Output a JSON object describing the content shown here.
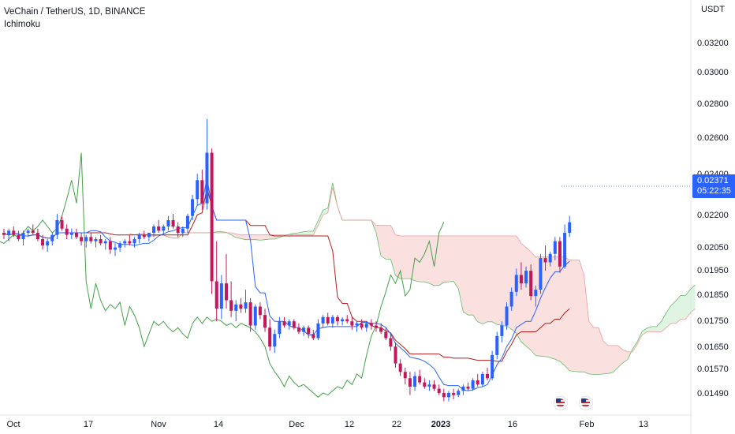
{
  "header": {
    "title": "VeChain / TetherUS, 1D, BINANCE",
    "indicator": "Ichimoku"
  },
  "price_axis": {
    "currency": "USDT",
    "labels": [
      "0.03200",
      "0.03000",
      "0.02800",
      "0.02600",
      "0.02400",
      "0.02200",
      "0.02050",
      "0.01950",
      "0.01850",
      "0.01750",
      "0.01650",
      "0.01570",
      "0.01490"
    ]
  },
  "time_axis": {
    "labels": [
      "Oct",
      "17",
      "Nov",
      "14",
      "Dec",
      "12",
      "22",
      "2023",
      "16",
      "Feb",
      "13"
    ]
  },
  "last_price": {
    "price": "0.02371",
    "countdown": "05:22:35"
  },
  "events": [
    "us-flag-icon",
    "us-flag-icon"
  ],
  "colors": {
    "up": "#2962ff",
    "down": "#c2185b",
    "tenkan": "#2962ff",
    "kijun": "#b71c1c",
    "chikou": "#43a047",
    "cloud_bear": "#f8d7d4",
    "cloud_bull": "#d6f0d9"
  },
  "chart_data": {
    "type": "candlestick",
    "symbol": "VeChain / TetherUS",
    "interval": "1D",
    "candles": [
      [
        0.0232,
        0.0234,
        0.0229,
        0.0231
      ],
      [
        0.0231,
        0.0234,
        0.0228,
        0.0233
      ],
      [
        0.0233,
        0.0235,
        0.023,
        0.0231
      ],
      [
        0.0231,
        0.0233,
        0.0228,
        0.0229
      ],
      [
        0.0229,
        0.0233,
        0.0226,
        0.0232
      ],
      [
        0.0232,
        0.0234,
        0.023,
        0.0233
      ],
      [
        0.0233,
        0.0236,
        0.0231,
        0.0232
      ],
      [
        0.0232,
        0.0234,
        0.0228,
        0.0229
      ],
      [
        0.0229,
        0.0231,
        0.0224,
        0.0226
      ],
      [
        0.0226,
        0.0229,
        0.0223,
        0.0228
      ],
      [
        0.0228,
        0.0232,
        0.0226,
        0.0231
      ],
      [
        0.0231,
        0.0241,
        0.0229,
        0.0238
      ],
      [
        0.0238,
        0.024,
        0.0233,
        0.0234
      ],
      [
        0.0234,
        0.0236,
        0.0229,
        0.0231
      ],
      [
        0.0231,
        0.0234,
        0.0229,
        0.0232
      ],
      [
        0.0232,
        0.0234,
        0.0229,
        0.023
      ],
      [
        0.023,
        0.0232,
        0.0226,
        0.0228
      ],
      [
        0.0228,
        0.0231,
        0.0225,
        0.023
      ],
      [
        0.023,
        0.0232,
        0.0227,
        0.0228
      ],
      [
        0.0228,
        0.023,
        0.0225,
        0.0229
      ],
      [
        0.0229,
        0.0231,
        0.0226,
        0.0227
      ],
      [
        0.0227,
        0.0229,
        0.0224,
        0.0228
      ],
      [
        0.0228,
        0.023,
        0.0222,
        0.0224
      ],
      [
        0.0224,
        0.0227,
        0.0221,
        0.0225
      ],
      [
        0.0225,
        0.0228,
        0.0223,
        0.0227
      ],
      [
        0.0227,
        0.0229,
        0.0225,
        0.0228
      ],
      [
        0.0228,
        0.0231,
        0.0226,
        0.0227
      ],
      [
        0.0227,
        0.023,
        0.0225,
        0.0229
      ],
      [
        0.0229,
        0.0232,
        0.0227,
        0.0231
      ],
      [
        0.0231,
        0.0233,
        0.0229,
        0.023
      ],
      [
        0.023,
        0.0232,
        0.0228,
        0.0232
      ],
      [
        0.0232,
        0.0236,
        0.023,
        0.0235
      ],
      [
        0.0235,
        0.0238,
        0.0232,
        0.0233
      ],
      [
        0.0233,
        0.0236,
        0.0231,
        0.0235
      ],
      [
        0.0235,
        0.024,
        0.0233,
        0.0238
      ],
      [
        0.0238,
        0.0241,
        0.0234,
        0.0235
      ],
      [
        0.0235,
        0.0237,
        0.023,
        0.0232
      ],
      [
        0.0232,
        0.0235,
        0.023,
        0.0234
      ],
      [
        0.0234,
        0.0241,
        0.0232,
        0.024
      ],
      [
        0.024,
        0.025,
        0.0238,
        0.0248
      ],
      [
        0.0248,
        0.026,
        0.0245,
        0.0257
      ],
      [
        0.0257,
        0.0262,
        0.0243,
        0.0246
      ],
      [
        0.0246,
        0.0286,
        0.0243,
        0.027
      ],
      [
        0.027,
        0.0272,
        0.0203,
        0.0209
      ],
      [
        0.0209,
        0.0228,
        0.019,
        0.0196
      ],
      [
        0.0196,
        0.0212,
        0.0191,
        0.0208
      ],
      [
        0.0208,
        0.0222,
        0.0196,
        0.02
      ],
      [
        0.02,
        0.0209,
        0.0192,
        0.0195
      ],
      [
        0.0195,
        0.02,
        0.019,
        0.0198
      ],
      [
        0.0198,
        0.0201,
        0.0194,
        0.0196
      ],
      [
        0.0196,
        0.0205,
        0.0194,
        0.0199
      ],
      [
        0.0199,
        0.0201,
        0.0185,
        0.0188
      ],
      [
        0.0188,
        0.0198,
        0.0186,
        0.0197
      ],
      [
        0.0197,
        0.0199,
        0.0191,
        0.0193
      ],
      [
        0.0193,
        0.0196,
        0.0185,
        0.0187
      ],
      [
        0.0187,
        0.0191,
        0.0176,
        0.0178
      ],
      [
        0.0178,
        0.0186,
        0.0175,
        0.0184
      ],
      [
        0.0184,
        0.0192,
        0.0182,
        0.019
      ],
      [
        0.019,
        0.0192,
        0.0187,
        0.0188
      ],
      [
        0.0188,
        0.0191,
        0.0186,
        0.019
      ],
      [
        0.019,
        0.0191,
        0.0186,
        0.0187
      ],
      [
        0.0187,
        0.0189,
        0.0184,
        0.0185
      ],
      [
        0.0185,
        0.0188,
        0.0183,
        0.0187
      ],
      [
        0.0187,
        0.0188,
        0.0182,
        0.0184
      ],
      [
        0.0184,
        0.0186,
        0.0181,
        0.0182
      ],
      [
        0.0182,
        0.0191,
        0.0181,
        0.0189
      ],
      [
        0.0189,
        0.0193,
        0.0187,
        0.0192
      ],
      [
        0.0192,
        0.0194,
        0.0188,
        0.0189
      ],
      [
        0.0189,
        0.0193,
        0.0187,
        0.0192
      ],
      [
        0.0192,
        0.0193,
        0.0188,
        0.019
      ],
      [
        0.019,
        0.0192,
        0.0188,
        0.0191
      ],
      [
        0.0191,
        0.0193,
        0.0189,
        0.019
      ],
      [
        0.019,
        0.0192,
        0.0186,
        0.0188
      ],
      [
        0.0188,
        0.019,
        0.0185,
        0.0189
      ],
      [
        0.0189,
        0.0191,
        0.0186,
        0.0187
      ],
      [
        0.0187,
        0.019,
        0.0185,
        0.0189
      ],
      [
        0.0189,
        0.0191,
        0.0186,
        0.0188
      ],
      [
        0.0188,
        0.019,
        0.0185,
        0.0187
      ],
      [
        0.0187,
        0.0189,
        0.0184,
        0.0185
      ],
      [
        0.0185,
        0.0187,
        0.0181,
        0.0182
      ],
      [
        0.0182,
        0.0184,
        0.0176,
        0.0178
      ],
      [
        0.0178,
        0.018,
        0.0168,
        0.017
      ],
      [
        0.017,
        0.0172,
        0.0164,
        0.0166
      ],
      [
        0.0166,
        0.0168,
        0.016,
        0.0163
      ],
      [
        0.0163,
        0.0166,
        0.0155,
        0.0159
      ],
      [
        0.0159,
        0.0166,
        0.0157,
        0.0164
      ],
      [
        0.0164,
        0.0167,
        0.016,
        0.0161
      ],
      [
        0.0161,
        0.0163,
        0.0158,
        0.0159
      ],
      [
        0.0159,
        0.0162,
        0.0157,
        0.016
      ],
      [
        0.016,
        0.0162,
        0.0157,
        0.0158
      ],
      [
        0.0158,
        0.016,
        0.0155,
        0.0156
      ],
      [
        0.0156,
        0.0158,
        0.0152,
        0.0154
      ],
      [
        0.0154,
        0.0157,
        0.0152,
        0.0156
      ],
      [
        0.0156,
        0.0158,
        0.0153,
        0.0155
      ],
      [
        0.0155,
        0.0158,
        0.0154,
        0.0157
      ],
      [
        0.0157,
        0.016,
        0.0155,
        0.0159
      ],
      [
        0.0159,
        0.0161,
        0.0157,
        0.0158
      ],
      [
        0.0158,
        0.0163,
        0.0157,
        0.0162
      ],
      [
        0.0162,
        0.0165,
        0.0159,
        0.016
      ],
      [
        0.016,
        0.0166,
        0.0159,
        0.0165
      ],
      [
        0.0165,
        0.0168,
        0.0162,
        0.0163
      ],
      [
        0.0163,
        0.0176,
        0.0162,
        0.0174
      ],
      [
        0.0174,
        0.0185,
        0.0172,
        0.0183
      ],
      [
        0.0183,
        0.019,
        0.018,
        0.0188
      ],
      [
        0.0188,
        0.0199,
        0.0186,
        0.0197
      ],
      [
        0.0197,
        0.0206,
        0.0195,
        0.0204
      ],
      [
        0.0204,
        0.0215,
        0.0202,
        0.0212
      ],
      [
        0.0212,
        0.0218,
        0.0205,
        0.0208
      ],
      [
        0.0208,
        0.0216,
        0.0206,
        0.0214
      ],
      [
        0.0214,
        0.0217,
        0.02,
        0.0202
      ],
      [
        0.0202,
        0.0207,
        0.0197,
        0.0205
      ],
      [
        0.0205,
        0.0222,
        0.0203,
        0.022
      ],
      [
        0.022,
        0.0226,
        0.0214,
        0.0218
      ],
      [
        0.0218,
        0.0223,
        0.0216,
        0.0222
      ],
      [
        0.0222,
        0.023,
        0.0219,
        0.0228
      ],
      [
        0.0228,
        0.023,
        0.0213,
        0.0216
      ],
      [
        0.0216,
        0.0236,
        0.0215,
        0.0232
      ],
      [
        0.0232,
        0.024,
        0.023,
        0.0237
      ]
    ],
    "ylim": [
      0.01455,
      0.0335
    ]
  }
}
